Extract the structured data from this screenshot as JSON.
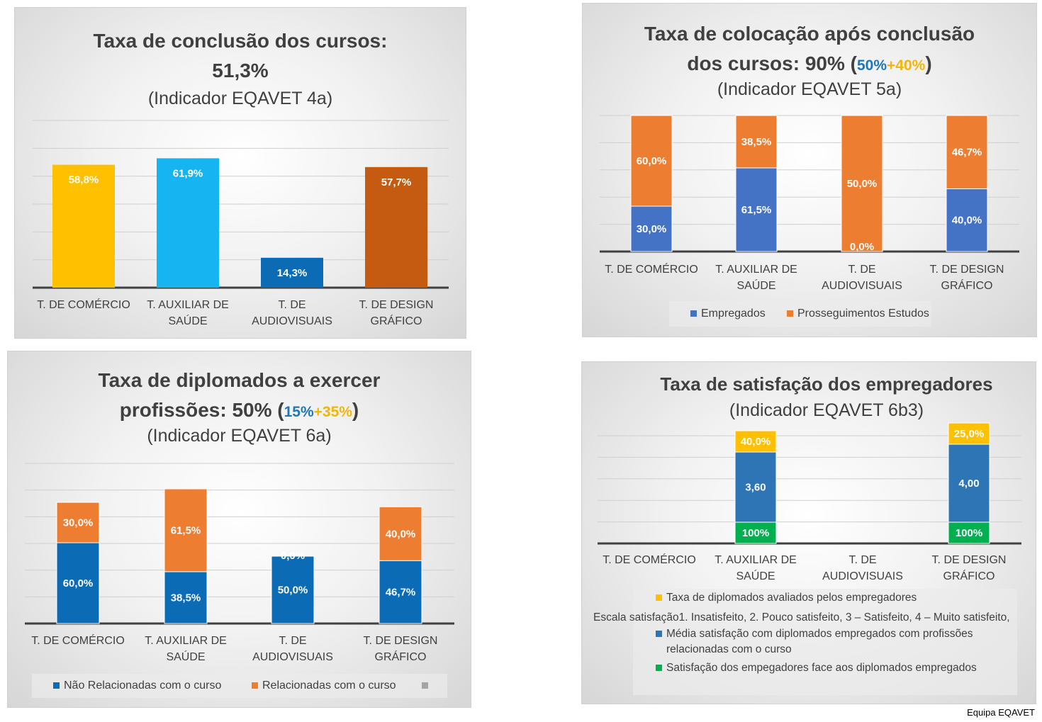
{
  "footer": "Equipa EQAVET",
  "colors": {
    "yellow": "#ffc000",
    "lightblue": "#16b4f1",
    "blue": "#0b6bb5",
    "darkorange": "#c55a11",
    "steelblue": "#4472c4",
    "orange": "#ed7d31",
    "gold": "#ffc000",
    "green": "#00b050"
  },
  "chart_data": [
    {
      "id": "conclusao",
      "type": "bar",
      "title_line1": "Taxa de conclusão dos cursos:",
      "title_line2": "51,3%",
      "subtitle": "(Indicador EQAVET 4a)",
      "categories": [
        [
          "T. DE COMÉRCIO"
        ],
        [
          "T. AUXILIAR DE",
          "SAÚDE"
        ],
        [
          "T. DE",
          "AUDIOVISUAIS"
        ],
        [
          "T. DE DESIGN",
          "GRÁFICO"
        ]
      ],
      "values": [
        58.8,
        61.9,
        14.3,
        57.7
      ],
      "labels": [
        "58,8%",
        "61,9%",
        "14,3%",
        "57,7%"
      ],
      "ylim": [
        0,
        80
      ]
    },
    {
      "id": "colocacao",
      "type": "stacked-bar",
      "title_line1": "Taxa de colocação após conclusão",
      "title_line2": "dos cursos: 90% (",
      "title_blue": "50%",
      "title_plus": "+",
      "title_gold": "40%",
      "title_close": ")",
      "subtitle": "(Indicador EQAVET 5a)",
      "categories": [
        [
          "T. DE COMÉRCIO"
        ],
        [
          "T. AUXILIAR DE",
          "SAÚDE"
        ],
        [
          "T. DE",
          "AUDIOVISUAIS"
        ],
        [
          "T. DE DESIGN",
          "GRÁFICO"
        ]
      ],
      "series": [
        {
          "name": "Empregados",
          "values": [
            30.0,
            61.5,
            0.0,
            40.0
          ],
          "labels": [
            "30,0%",
            "61,5%",
            "0,0%",
            "40,0%"
          ]
        },
        {
          "name": "Prosseguimentos Estudos",
          "values": [
            60.0,
            38.5,
            50.0,
            46.7
          ],
          "labels": [
            "60,0%",
            "38,5%",
            "50,0%",
            "46,7%"
          ]
        }
      ],
      "ylim": [
        0,
        100
      ]
    },
    {
      "id": "diplomados",
      "type": "stacked-bar",
      "title_line1": "Taxa de diplomados a exercer",
      "title_line2": "profissões: 50% (",
      "title_blue": "15%",
      "title_plus": "+",
      "title_gold": "35%",
      "title_close": ")",
      "subtitle": "(Indicador EQAVET 6a)",
      "categories": [
        [
          "T. DE COMÉRCIO"
        ],
        [
          "T. AUXILIAR DE",
          "SAÚDE"
        ],
        [
          "T. DE",
          "AUDIOVISUAIS"
        ],
        [
          "T. DE DESIGN",
          "GRÁFICO"
        ]
      ],
      "series": [
        {
          "name": "Não Relacionadas com o curso",
          "values": [
            60.0,
            38.5,
            50.0,
            46.7
          ],
          "labels": [
            "60,0%",
            "38,5%",
            "50,0%",
            "46,7%"
          ]
        },
        {
          "name": "Relacionadas com o curso",
          "values": [
            30.0,
            61.5,
            0.0,
            40.0
          ],
          "labels": [
            "30,0%",
            "61,5%",
            "0,0%",
            "40,0%"
          ]
        }
      ],
      "ylim": [
        0,
        100
      ]
    },
    {
      "id": "satisfacao",
      "type": "stacked-bar",
      "title_line1": "Taxa de satisfação dos empregadores",
      "subtitle": "(Indicador EQAVET 6b3)",
      "categories": [
        [
          "T. DE COMÉRCIO"
        ],
        [
          "T. AUXILIAR DE",
          "SAÚDE"
        ],
        [
          "T. DE",
          "AUDIOVISUAIS"
        ],
        [
          "T. DE DESIGN",
          "GRÁFICO"
        ]
      ],
      "series": [
        {
          "name": "Satisfação dos empegadores face aos diplomados empregados",
          "values": [
            null,
            1,
            null,
            1
          ],
          "labels": [
            "",
            "100%",
            "",
            "100%"
          ]
        },
        {
          "name": "Média satisfação com diplomados empregados com profissões relacionadas com o curso",
          "name_lines": [
            "Média satisfação com diplomados empregados com profissões",
            "relacionadas com o curso"
          ],
          "values": [
            null,
            3.6,
            null,
            4.0
          ],
          "labels": [
            "",
            "3,60",
            "",
            "4,00"
          ]
        },
        {
          "name": "Taxa de diplomados avaliados pelos empregadores",
          "values": [
            null,
            0.4,
            null,
            0.25
          ],
          "labels": [
            "",
            "40,0%",
            "",
            "25,0%"
          ]
        }
      ],
      "legend_note": "Escala satisfação1. Insatisfeito, 2. Pouco satisfeito, 3 – Satisfeito, 4 – Muito satisfeito,"
    }
  ]
}
